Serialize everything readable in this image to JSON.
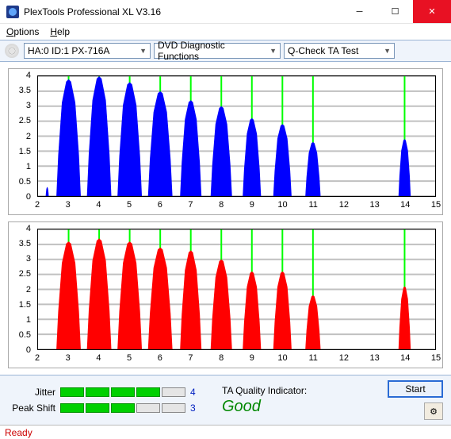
{
  "window": {
    "title": "PlexTools Professional XL V3.16"
  },
  "menu": {
    "options": "Options",
    "help": "Help"
  },
  "toolbar": {
    "drive": "HA:0 ID:1   PX-716A",
    "function": "DVD Diagnostic Functions",
    "test": "Q-Check TA Test"
  },
  "charts": {
    "xmin": 2,
    "xmax": 15,
    "xstep": 1,
    "ymin": 0,
    "ymax": 4,
    "ystep": 0.5,
    "grid_color": "#c0c0c0",
    "vline_color": "#00ff00",
    "vlines": [
      3,
      4,
      5,
      6,
      7,
      8,
      9,
      10,
      11,
      14
    ],
    "top": {
      "color": "#0000ff",
      "peaks": [
        {
          "c": 2.3,
          "h": 0.3,
          "w": 0.1
        },
        {
          "c": 3.0,
          "h": 3.9,
          "w": 0.8
        },
        {
          "c": 4.0,
          "h": 4.0,
          "w": 0.8
        },
        {
          "c": 5.0,
          "h": 3.8,
          "w": 0.8
        },
        {
          "c": 6.0,
          "h": 3.5,
          "w": 0.8
        },
        {
          "c": 7.0,
          "h": 3.2,
          "w": 0.7
        },
        {
          "c": 8.0,
          "h": 3.0,
          "w": 0.7
        },
        {
          "c": 9.0,
          "h": 2.6,
          "w": 0.6
        },
        {
          "c": 10.0,
          "h": 2.4,
          "w": 0.6
        },
        {
          "c": 11.0,
          "h": 1.8,
          "w": 0.5
        },
        {
          "c": 14.0,
          "h": 1.9,
          "w": 0.4
        }
      ]
    },
    "bottom": {
      "color": "#ff0000",
      "peaks": [
        {
          "c": 3.0,
          "h": 3.6,
          "w": 0.8
        },
        {
          "c": 4.0,
          "h": 3.7,
          "w": 0.8
        },
        {
          "c": 5.0,
          "h": 3.6,
          "w": 0.8
        },
        {
          "c": 6.0,
          "h": 3.4,
          "w": 0.8
        },
        {
          "c": 7.0,
          "h": 3.3,
          "w": 0.7
        },
        {
          "c": 8.0,
          "h": 3.0,
          "w": 0.7
        },
        {
          "c": 9.0,
          "h": 2.6,
          "w": 0.6
        },
        {
          "c": 10.0,
          "h": 2.6,
          "w": 0.6
        },
        {
          "c": 11.0,
          "h": 1.8,
          "w": 0.5
        },
        {
          "c": 14.0,
          "h": 2.1,
          "w": 0.4
        }
      ]
    }
  },
  "meters": {
    "jitter": {
      "label": "Jitter",
      "value": 4,
      "max": 5
    },
    "peak_shift": {
      "label": "Peak Shift",
      "value": 3,
      "max": 5
    }
  },
  "ta": {
    "label": "TA Quality Indicator:",
    "value": "Good",
    "color": "#008800"
  },
  "buttons": {
    "start": "Start"
  },
  "status": "Ready"
}
